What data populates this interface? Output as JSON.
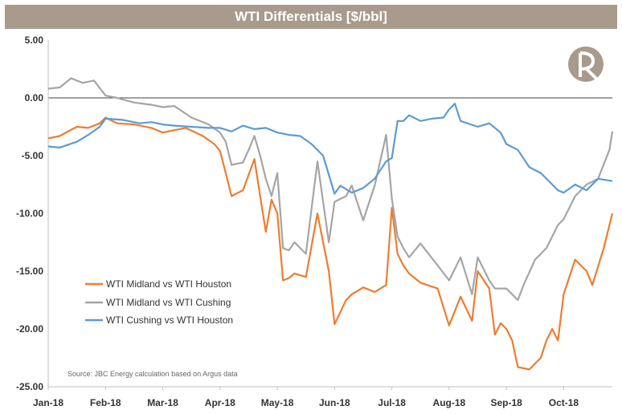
{
  "chart_data": {
    "type": "line",
    "title": "WTI Differentials [$/bbl]",
    "xlabel": "",
    "ylabel": "",
    "ylim": [
      -25,
      5
    ],
    "y_ticks": [
      "5.00",
      "0.00",
      "-5.00",
      "-10.00",
      "-15.00",
      "-20.00",
      "-25.00"
    ],
    "x_tick_labels": [
      "Jan-18",
      "Feb-18",
      "Mar-18",
      "Apr-18",
      "May-18",
      "Jun-18",
      "Jul-18",
      "Aug-18",
      "Sep-18",
      "Oct-18"
    ],
    "x_range_months": [
      0,
      9.85
    ],
    "source_note": "Source: JBC Energy calculation based on Argus data",
    "series": [
      {
        "name": "WTI Midland vs WTI Houston",
        "color": "#ed7d31",
        "x": [
          0,
          0.2,
          0.5,
          0.7,
          0.9,
          1.0,
          1.2,
          1.5,
          1.8,
          2.0,
          2.2,
          2.4,
          2.7,
          2.9,
          3.0,
          3.1,
          3.2,
          3.4,
          3.6,
          3.7,
          3.8,
          3.9,
          4.0,
          4.1,
          4.2,
          4.3,
          4.5,
          4.7,
          4.9,
          5.0,
          5.2,
          5.3,
          5.5,
          5.7,
          5.9,
          6.0,
          6.1,
          6.2,
          6.3,
          6.5,
          6.8,
          7.0,
          7.2,
          7.4,
          7.5,
          7.7,
          7.8,
          7.9,
          8.0,
          8.1,
          8.2,
          8.4,
          8.6,
          8.7,
          8.8,
          8.9,
          9.0,
          9.2,
          9.4,
          9.5,
          9.7,
          9.85
        ],
        "values": [
          -3.5,
          -3.3,
          -2.5,
          -2.6,
          -2.2,
          -1.7,
          -2.2,
          -2.3,
          -2.6,
          -3.0,
          -2.8,
          -2.6,
          -3.3,
          -4.0,
          -4.6,
          -6.5,
          -8.5,
          -8.0,
          -5.3,
          -8.5,
          -11.6,
          -8.8,
          -10.0,
          -15.8,
          -15.6,
          -15.2,
          -15.5,
          -10.0,
          -15.0,
          -19.6,
          -17.5,
          -17.0,
          -16.4,
          -16.8,
          -16.2,
          -9.5,
          -13.5,
          -14.5,
          -15.2,
          -16.0,
          -16.5,
          -19.7,
          -17.2,
          -19.3,
          -15.0,
          -16.5,
          -20.5,
          -19.5,
          -20.0,
          -21.0,
          -23.3,
          -23.5,
          -22.5,
          -21.0,
          -20.0,
          -21.0,
          -17.0,
          -14.0,
          -15.0,
          -16.2,
          -13.0,
          -10.0
        ]
      },
      {
        "name": "WTI Midland vs WTI Cushing",
        "color": "#a5a5a5",
        "x": [
          0,
          0.2,
          0.4,
          0.6,
          0.8,
          1.0,
          1.2,
          1.5,
          1.8,
          2.0,
          2.2,
          2.5,
          2.8,
          3.0,
          3.1,
          3.2,
          3.4,
          3.5,
          3.6,
          3.7,
          3.8,
          3.9,
          4.0,
          4.1,
          4.2,
          4.3,
          4.5,
          4.7,
          4.8,
          4.9,
          5.0,
          5.2,
          5.3,
          5.5,
          5.7,
          5.9,
          6.0,
          6.1,
          6.2,
          6.3,
          6.5,
          6.8,
          7.0,
          7.2,
          7.4,
          7.5,
          7.7,
          7.8,
          8.0,
          8.2,
          8.3,
          8.5,
          8.7,
          8.9,
          9.0,
          9.2,
          9.4,
          9.6,
          9.8,
          9.85
        ],
        "values": [
          0.8,
          0.9,
          1.7,
          1.3,
          1.5,
          0.2,
          0.0,
          -0.4,
          -0.6,
          -0.8,
          -0.7,
          -1.7,
          -2.3,
          -3.0,
          -3.8,
          -5.8,
          -5.6,
          -4.5,
          -3.3,
          -5.0,
          -7.0,
          -8.5,
          -6.5,
          -13.0,
          -13.2,
          -12.5,
          -13.5,
          -5.5,
          -9.0,
          -12.5,
          -9.0,
          -8.5,
          -7.6,
          -10.6,
          -7.6,
          -3.2,
          -8.7,
          -12.0,
          -13.0,
          -13.8,
          -12.6,
          -14.5,
          -15.8,
          -13.8,
          -17.0,
          -13.8,
          -15.8,
          -16.5,
          -16.5,
          -17.5,
          -16.2,
          -14.0,
          -13.0,
          -11.0,
          -10.5,
          -8.5,
          -7.5,
          -7.0,
          -4.5,
          -2.9
        ]
      },
      {
        "name": "WTI Cushing vs WTI Houston",
        "color": "#5b9bd5",
        "x": [
          0,
          0.2,
          0.5,
          0.7,
          0.9,
          1.0,
          1.3,
          1.6,
          1.8,
          2.0,
          2.2,
          2.5,
          2.8,
          3.0,
          3.2,
          3.4,
          3.6,
          3.8,
          4.0,
          4.2,
          4.4,
          4.6,
          4.8,
          5.0,
          5.1,
          5.3,
          5.5,
          5.7,
          5.9,
          6.0,
          6.1,
          6.2,
          6.3,
          6.5,
          6.7,
          6.9,
          7.0,
          7.1,
          7.2,
          7.5,
          7.7,
          7.9,
          8.0,
          8.2,
          8.4,
          8.6,
          8.8,
          8.9,
          9.0,
          9.2,
          9.4,
          9.6,
          9.85
        ],
        "values": [
          -4.2,
          -4.3,
          -3.8,
          -3.2,
          -2.5,
          -1.8,
          -1.9,
          -2.2,
          -2.1,
          -2.3,
          -2.4,
          -2.5,
          -2.6,
          -2.6,
          -2.9,
          -2.4,
          -2.7,
          -2.6,
          -3.0,
          -3.2,
          -3.3,
          -4.0,
          -5.0,
          -8.3,
          -7.6,
          -8.2,
          -7.8,
          -7.0,
          -5.5,
          -5.2,
          -2.0,
          -2.0,
          -1.5,
          -2.0,
          -1.8,
          -1.7,
          -1.0,
          -0.5,
          -2.0,
          -2.5,
          -2.2,
          -3.0,
          -4.0,
          -4.5,
          -6.0,
          -6.5,
          -7.5,
          -8.0,
          -8.2,
          -7.5,
          -8.0,
          -7.0,
          -7.2
        ]
      }
    ]
  }
}
